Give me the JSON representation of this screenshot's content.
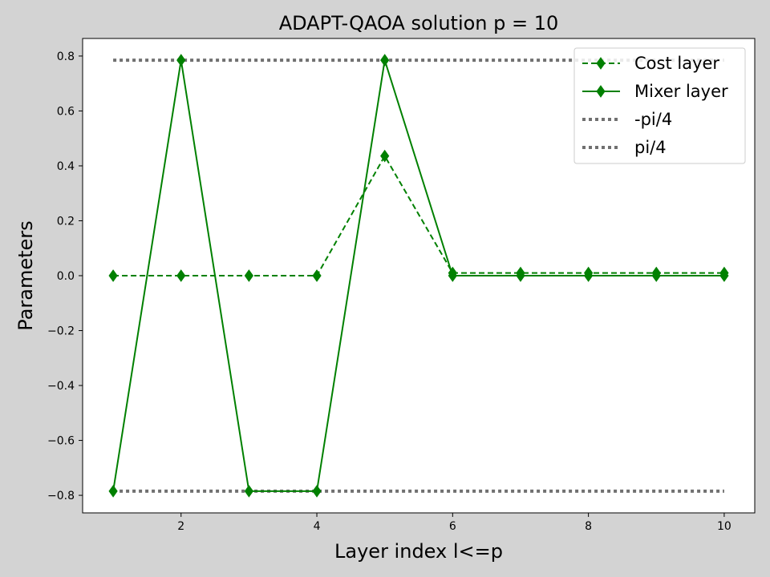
{
  "chart_data": {
    "type": "line",
    "title": "ADAPT-QAOA solution p = 10",
    "xlabel": "Layer index l<=p",
    "ylabel": "Parameters",
    "xlim": [
      0.55,
      10.45
    ],
    "ylim": [
      -0.864,
      0.864
    ],
    "xticks": [
      2,
      4,
      6,
      8,
      10
    ],
    "xtick_labels": [
      "2",
      "4",
      "6",
      "8",
      "10"
    ],
    "yticks": [
      -0.8,
      -0.6,
      -0.4,
      -0.2,
      0.0,
      0.2,
      0.4,
      0.6,
      0.8
    ],
    "ytick_labels": [
      "−0.8",
      "−0.6",
      "−0.4",
      "−0.2",
      "0.0",
      "0.2",
      "0.4",
      "0.6",
      "0.8"
    ],
    "grid": false,
    "legend_position": "top-right",
    "x": [
      1,
      2,
      3,
      4,
      5,
      6,
      7,
      8,
      9,
      10
    ],
    "series": [
      {
        "name": "Cost layer",
        "color": "#008000",
        "linestyle": "dashed",
        "marker": "thin-diamond",
        "values": [
          0.0,
          0.0,
          0.0,
          0.0,
          0.436,
          0.01,
          0.01,
          0.01,
          0.01,
          0.01
        ]
      },
      {
        "name": "Mixer layer",
        "color": "#008000",
        "linestyle": "solid",
        "marker": "thin-diamond",
        "values": [
          -0.785,
          0.785,
          -0.785,
          -0.785,
          0.785,
          0.0,
          0.0,
          0.0,
          0.0,
          0.0
        ]
      },
      {
        "name": "-pi/4",
        "color": "#707070",
        "linestyle": "dotted",
        "marker": "none",
        "values": [
          -0.785,
          -0.785,
          -0.785,
          -0.785,
          -0.785,
          -0.785,
          -0.785,
          -0.785,
          -0.785,
          -0.785
        ]
      },
      {
        "name": "pi/4",
        "color": "#707070",
        "linestyle": "dotted",
        "marker": "none",
        "values": [
          0.785,
          0.785,
          0.785,
          0.785,
          0.785,
          0.785,
          0.785,
          0.785,
          0.785,
          0.785
        ]
      }
    ]
  }
}
